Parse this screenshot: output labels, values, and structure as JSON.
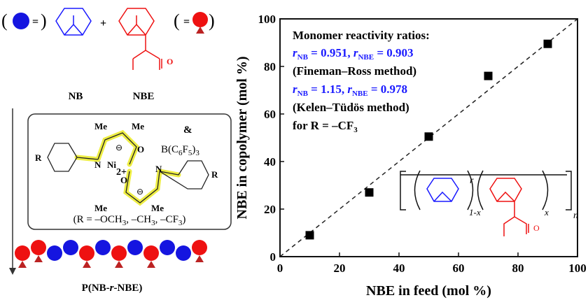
{
  "scheme": {
    "paren_open": "(",
    "paren_close": ")",
    "equals": "=",
    "plus": "+",
    "nb_label": "NB",
    "nbe_label": "NBE",
    "amp": "&",
    "borane": [
      "B(C",
      "6",
      "F",
      "5",
      ")",
      "3"
    ],
    "me": "Me",
    "ni": "Ni",
    "charge": "2+",
    "n_atom": "N",
    "o_atom": "O",
    "r_group": "R",
    "minus": "⊖",
    "r_list": [
      "(R = –OCH",
      "3",
      ", –CH",
      "3",
      ", –CF",
      "3",
      ")"
    ],
    "polymer": [
      "P(NB-",
      "r",
      "-NBE)"
    ]
  },
  "inset": {
    "r": "r",
    "sub_nb": "1-x",
    "sub_nbe": "x",
    "n": "n"
  },
  "chart_data": {
    "type": "scatter",
    "x_label": "NBE in feed (mol %)",
    "y_label": "NBE in copolymer (mol %)",
    "x": [
      10,
      30,
      50,
      70,
      90
    ],
    "values": [
      9,
      27,
      50.5,
      76,
      89.5
    ],
    "color": "#000000",
    "xlim": [
      0,
      100
    ],
    "ylim": [
      0,
      100
    ],
    "xticks": [
      0,
      20,
      40,
      60,
      80,
      100
    ],
    "yticks": [
      0,
      20,
      40,
      60,
      80,
      100
    ],
    "annotations": [
      [
        "Monomer reactivity ratios:"
      ],
      [
        "r",
        "NB",
        " = 0.951, ",
        "r",
        "NBE",
        " = 0.903"
      ],
      [
        "(Fineman–Ross method)"
      ],
      [
        "r",
        "NB",
        " = 1.15, ",
        "r",
        "NBE",
        " = 0.978"
      ],
      [
        "(Kelen–Tüdös method)"
      ],
      [
        "for R = –CF",
        "3"
      ]
    ]
  }
}
